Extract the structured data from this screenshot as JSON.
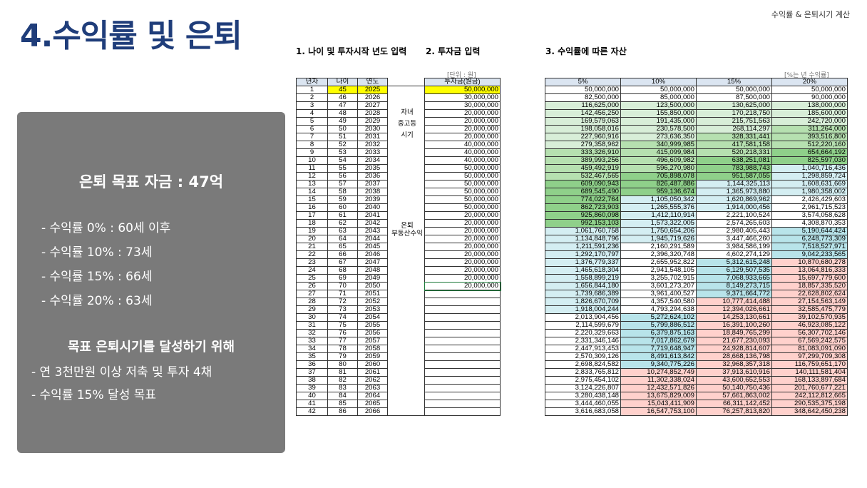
{
  "header": {
    "title": "4.수익률 및 은퇴",
    "top_right": "수익률 & 은퇴시기 계산"
  },
  "summary": {
    "goal": "은퇴 목표 자금 : 47억",
    "returns": [
      "- 수익률   0% : 60세 이후",
      "- 수익률 10% : 73세",
      "- 수익률 15% : 66세",
      "- 수익률 20% : 63세"
    ],
    "plan_title": "목표 은퇴시기를 달성하기 위해",
    "plan": [
      "- 연 3천만원 이상 저축 및 투자 4채",
      "- 수익률 15% 달성 목표"
    ]
  },
  "section1": {
    "title": "1. 나이 및 투자시작 년도 입력",
    "title2": "2. 투자금 입력",
    "unit": "[단위 : 원]",
    "headers": [
      "년차",
      "나이",
      "연도",
      "",
      "투자금(원금)"
    ],
    "phase1": [
      "자녀",
      "중고등",
      "시기"
    ],
    "phase2": [
      "은퇴",
      "부동산수익"
    ]
  },
  "section3": {
    "title": "3. 수익률에 따른 자산",
    "unit": "[%는 년 수익률]",
    "headers": [
      "5%",
      "10%",
      "15%",
      "20%"
    ]
  },
  "investments": [
    "50,000,000",
    "30,000,000",
    "30,000,000",
    "20,000,000",
    "20,000,000",
    "20,000,000",
    "20,000,000",
    "40,000,000",
    "40,000,000",
    "40,000,000",
    "50,000,000",
    "50,000,000",
    "50,000,000",
    "50,000,000",
    "50,000,000",
    "50,000,000",
    "20,000,000",
    "20,000,000",
    "20,000,000",
    "20,000,000",
    "20,000,000",
    "20,000,000",
    "20,000,000",
    "20,000,000",
    "20,000,000",
    "20,000,000"
  ],
  "assets": [
    [
      "50,000,000",
      "50,000,000",
      "50,000,000",
      "50,000,000"
    ],
    [
      "82,500,000",
      "85,000,000",
      "87,500,000",
      "90,000,000"
    ],
    [
      "116,625,000",
      "123,500,000",
      "130,625,000",
      "138,000,000"
    ],
    [
      "142,456,250",
      "155,850,000",
      "170,218,750",
      "185,600,000"
    ],
    [
      "169,579,063",
      "191,435,000",
      "215,751,563",
      "242,720,000"
    ],
    [
      "198,058,016",
      "230,578,500",
      "268,114,297",
      "311,264,000"
    ],
    [
      "227,960,916",
      "273,636,350",
      "328,331,441",
      "393,516,800"
    ],
    [
      "279,358,962",
      "340,999,985",
      "417,581,158",
      "512,220,160"
    ],
    [
      "333,326,910",
      "415,099,984",
      "520,218,331",
      "654,664,192"
    ],
    [
      "389,993,256",
      "496,609,982",
      "638,251,081",
      "825,597,030"
    ],
    [
      "459,492,919",
      "596,270,980",
      "783,988,743",
      "1,040,716,436"
    ],
    [
      "532,467,565",
      "705,898,078",
      "951,587,055",
      "1,298,859,724"
    ],
    [
      "609,090,943",
      "826,487,886",
      "1,144,325,113",
      "1,608,631,669"
    ],
    [
      "689,545,490",
      "959,136,674",
      "1,365,973,880",
      "1,980,358,002"
    ],
    [
      "774,022,764",
      "1,105,050,342",
      "1,620,869,962",
      "2,426,429,603"
    ],
    [
      "862,723,903",
      "1,265,555,376",
      "1,914,000,456",
      "2,961,715,523"
    ],
    [
      "925,860,098",
      "1,412,110,914",
      "2,221,100,524",
      "3,574,058,628"
    ],
    [
      "992,153,103",
      "1,573,322,005",
      "2,574,265,603",
      "4,308,870,353"
    ],
    [
      "1,061,760,758",
      "1,750,654,206",
      "2,980,405,443",
      "5,190,644,424"
    ],
    [
      "1,134,848,796",
      "1,945,719,626",
      "3,447,466,260",
      "6,248,773,309"
    ],
    [
      "1,211,591,236",
      "2,160,291,589",
      "3,984,586,199",
      "7,518,527,971"
    ],
    [
      "1,292,170,797",
      "2,396,320,748",
      "4,602,274,129",
      "9,042,233,565"
    ],
    [
      "1,376,779,337",
      "2,655,952,822",
      "5,312,615,248",
      "10,870,680,278"
    ],
    [
      "1,465,618,304",
      "2,941,548,105",
      "6,129,507,535",
      "13,064,816,333"
    ],
    [
      "1,558,899,219",
      "3,255,702,915",
      "7,068,933,665",
      "15,697,779,600"
    ],
    [
      "1,656,844,180",
      "3,601,273,207",
      "8,149,273,715",
      "18,857,335,520"
    ],
    [
      "1,739,686,389",
      "3,961,400,527",
      "9,371,664,772",
      "22,628,802,624"
    ],
    [
      "1,826,670,709",
      "4,357,540,580",
      "10,777,414,488",
      "27,154,563,149"
    ],
    [
      "1,918,004,244",
      "4,793,294,638",
      "12,394,026,661",
      "32,585,475,779"
    ],
    [
      "2,013,904,456",
      "5,272,624,102",
      "14,253,130,661",
      "39,102,570,935"
    ],
    [
      "2,114,599,679",
      "5,799,886,512",
      "16,391,100,260",
      "46,923,085,122"
    ],
    [
      "2,220,329,663",
      "6,379,875,163",
      "18,849,765,299",
      "56,307,702,146"
    ],
    [
      "2,331,346,146",
      "7,017,862,679",
      "21,677,230,093",
      "67,569,242,575"
    ],
    [
      "2,447,913,453",
      "7,719,648,947",
      "24,928,814,607",
      "81,083,091,090"
    ],
    [
      "2,570,309,126",
      "8,491,613,842",
      "28,668,136,798",
      "97,299,709,308"
    ],
    [
      "2,698,824,582",
      "9,340,775,226",
      "32,968,357,318",
      "116,759,651,170"
    ],
    [
      "2,833,765,812",
      "10,274,852,749",
      "37,913,610,916",
      "140,111,581,404"
    ],
    [
      "2,975,454,102",
      "11,302,338,024",
      "43,600,652,553",
      "168,133,897,684"
    ],
    [
      "3,124,226,807",
      "12,432,571,826",
      "50,140,750,436",
      "201,760,677,221"
    ],
    [
      "3,280,438,148",
      "13,675,829,009",
      "57,661,863,002",
      "242,112,812,665"
    ],
    [
      "3,444,460,055",
      "15,043,411,909",
      "66,311,142,452",
      "290,535,375,198"
    ],
    [
      "3,616,683,058",
      "16,547,753,100",
      "76,257,813,820",
      "348,642,450,238"
    ]
  ],
  "colors": {
    "title": "#1f3d7a",
    "highlight": "#ffff00",
    "box": "#7a7a7a",
    "header_bg": "#dbe5f1"
  }
}
